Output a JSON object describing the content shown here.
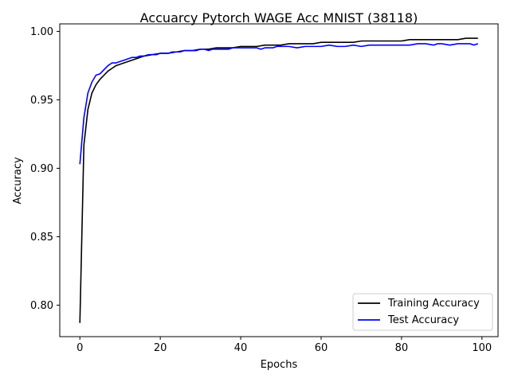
{
  "chart_data": {
    "type": "line",
    "title": "Accuarcy Pytorch WAGE Acc MNIST (38118)",
    "xlabel": "Epochs",
    "ylabel": "Accuracy",
    "xlim": [
      -5,
      104
    ],
    "ylim": [
      0.777,
      1.0055
    ],
    "xticks": [
      0,
      20,
      40,
      60,
      80,
      100
    ],
    "yticks": [
      0.8,
      0.85,
      0.9,
      0.95,
      1.0
    ],
    "xtick_labels": [
      "0",
      "20",
      "40",
      "60",
      "80",
      "100"
    ],
    "ytick_labels": [
      "0.80",
      "0.85",
      "0.90",
      "0.95",
      "1.00"
    ],
    "grid": false,
    "legend_position": "lower-right",
    "series": [
      {
        "name": "Training Accuracy",
        "color": "#000000",
        "x": [
          0,
          1,
          2,
          3,
          4,
          5,
          6,
          7,
          8,
          9,
          10,
          12,
          14,
          16,
          18,
          20,
          22,
          24,
          26,
          28,
          30,
          32,
          34,
          36,
          38,
          40,
          42,
          44,
          46,
          48,
          50,
          52,
          54,
          56,
          58,
          60,
          62,
          64,
          66,
          68,
          70,
          72,
          74,
          76,
          78,
          80,
          82,
          84,
          86,
          88,
          90,
          92,
          94,
          96,
          98,
          99
        ],
        "y": [
          0.787,
          0.917,
          0.943,
          0.955,
          0.961,
          0.965,
          0.968,
          0.971,
          0.973,
          0.975,
          0.976,
          0.978,
          0.98,
          0.982,
          0.983,
          0.984,
          0.984,
          0.985,
          0.986,
          0.986,
          0.987,
          0.987,
          0.988,
          0.988,
          0.988,
          0.989,
          0.989,
          0.989,
          0.99,
          0.99,
          0.99,
          0.991,
          0.991,
          0.991,
          0.991,
          0.992,
          0.992,
          0.992,
          0.992,
          0.992,
          0.993,
          0.993,
          0.993,
          0.993,
          0.993,
          0.993,
          0.994,
          0.994,
          0.994,
          0.994,
          0.994,
          0.994,
          0.994,
          0.995,
          0.995,
          0.995
        ]
      },
      {
        "name": "Test Accuracy",
        "color": "#0000ff",
        "x": [
          0,
          1,
          2,
          3,
          4,
          5,
          6,
          7,
          8,
          9,
          10,
          11,
          12,
          13,
          14,
          15,
          16,
          17,
          18,
          19,
          20,
          21,
          22,
          23,
          24,
          25,
          26,
          27,
          28,
          29,
          30,
          31,
          32,
          33,
          34,
          35,
          36,
          37,
          38,
          39,
          40,
          41,
          42,
          43,
          44,
          45,
          46,
          47,
          48,
          49,
          50,
          52,
          54,
          56,
          58,
          60,
          62,
          64,
          66,
          68,
          70,
          72,
          74,
          76,
          78,
          80,
          82,
          84,
          86,
          88,
          89,
          90,
          92,
          94,
          96,
          97,
          98,
          99
        ],
        "y": [
          0.903,
          0.937,
          0.955,
          0.963,
          0.968,
          0.969,
          0.972,
          0.975,
          0.977,
          0.977,
          0.978,
          0.979,
          0.98,
          0.981,
          0.981,
          0.982,
          0.982,
          0.983,
          0.983,
          0.983,
          0.984,
          0.984,
          0.984,
          0.985,
          0.985,
          0.985,
          0.986,
          0.986,
          0.986,
          0.986,
          0.987,
          0.987,
          0.986,
          0.987,
          0.987,
          0.987,
          0.987,
          0.987,
          0.988,
          0.988,
          0.988,
          0.988,
          0.988,
          0.988,
          0.988,
          0.987,
          0.988,
          0.988,
          0.988,
          0.989,
          0.989,
          0.989,
          0.988,
          0.989,
          0.989,
          0.989,
          0.99,
          0.989,
          0.989,
          0.99,
          0.989,
          0.99,
          0.99,
          0.99,
          0.99,
          0.99,
          0.99,
          0.991,
          0.991,
          0.99,
          0.991,
          0.991,
          0.99,
          0.991,
          0.991,
          0.991,
          0.99,
          0.991
        ]
      }
    ]
  }
}
